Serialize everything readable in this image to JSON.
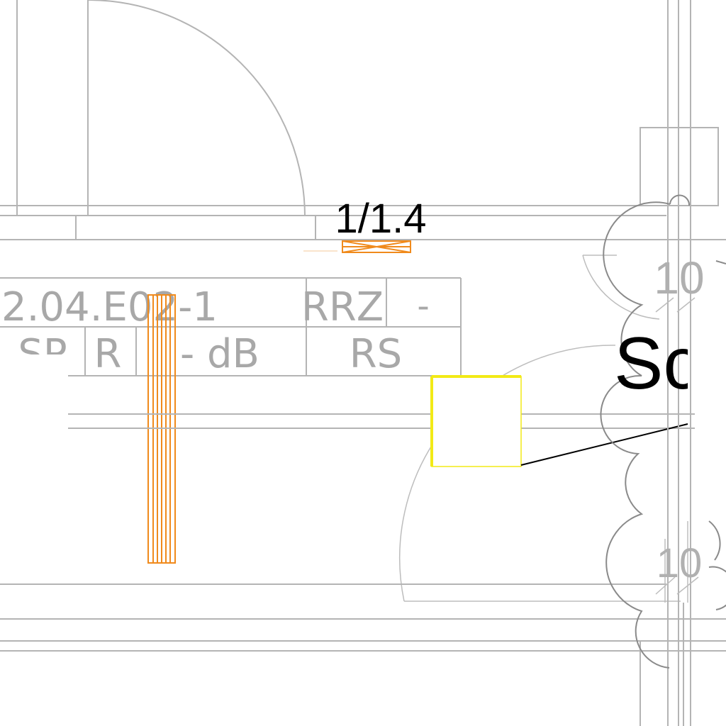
{
  "drawing": {
    "door_label": "1/1.4",
    "room_tag": {
      "room_number": "2.04.E02-1",
      "room_type": "RRZ",
      "room_value": "-",
      "row2_col1": "SP",
      "row2_col2": "R",
      "sound_rating": "- dB",
      "rs": "RS"
    },
    "room_name_partial": "Sch",
    "dimensions": [
      "10",
      "10"
    ],
    "colors": {
      "wall_lines": "#b4b4b4",
      "revision_cloud": "#8a8a8a",
      "highlight_orange": "#f08a1c",
      "highlight_yellow": "#f2ea16",
      "annotation_text": "#000000"
    }
  }
}
